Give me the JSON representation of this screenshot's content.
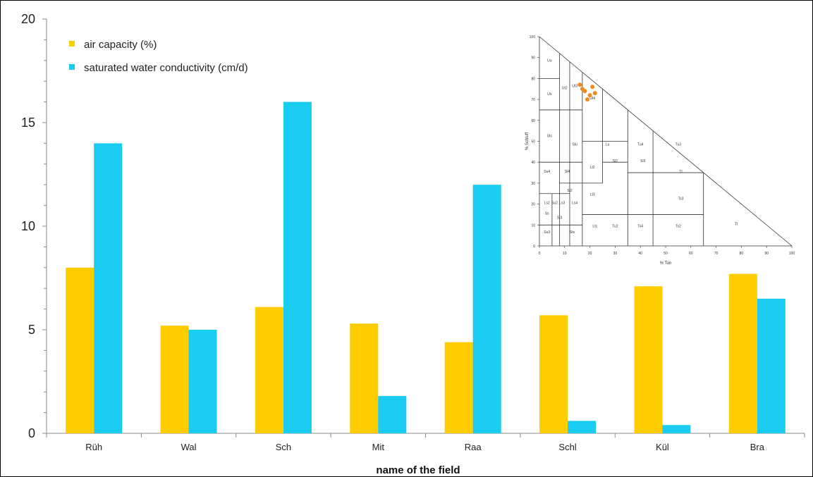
{
  "colors": {
    "air": "#FFCC00",
    "water": "#19CCF0",
    "axis": "#888888",
    "marker": "#F08A1E"
  },
  "chart_data": {
    "type": "bar",
    "title": "",
    "xlabel": "name of the field",
    "ylabel": "",
    "ylim": [
      0,
      20
    ],
    "yticks": [
      "0",
      "5",
      "10",
      "15",
      "20"
    ],
    "categories": [
      "Rüh",
      "Wal",
      "Sch",
      "Mit",
      "Raa",
      "Schl",
      "Kül",
      "Bra"
    ],
    "series": [
      {
        "name": "air capacity (%)",
        "values": [
          8.0,
          5.2,
          6.1,
          5.3,
          4.4,
          5.7,
          7.1,
          7.7
        ]
      },
      {
        "name": "saturated water conductivity (cm/d)",
        "values": [
          14.0,
          5.0,
          16.0,
          1.8,
          12.0,
          0.6,
          0.4,
          6.5
        ]
      }
    ],
    "grid": false,
    "legend": "top-left"
  },
  "inset": {
    "x_axis_label": "% Ton",
    "y_axis_label": "% Schluff",
    "x_ticks": [
      "0",
      "10",
      "20",
      "30",
      "40",
      "50",
      "60",
      "70",
      "80",
      "90",
      "100"
    ],
    "y_ticks": [
      "0",
      "10",
      "20",
      "30",
      "40",
      "50",
      "60",
      "70",
      "80",
      "90",
      "100"
    ],
    "class_labels": [
      "Uu",
      "Us",
      "Ut2",
      "Ut3",
      "Ut4",
      "Uls",
      "Slu",
      "Lu",
      "Tu4",
      "Tu3",
      "Su4",
      "Sl4",
      "Lt2",
      "Lt3",
      "Ls2",
      "Ls3",
      "Ls4",
      "Lts",
      "Tu2",
      "Ts4",
      "Ts3",
      "Ts2",
      "Tl",
      "Tt",
      "Su3",
      "Su2",
      "Sl2",
      "Sl3",
      "St2",
      "St3",
      "Ss",
      "Sts"
    ]
  }
}
